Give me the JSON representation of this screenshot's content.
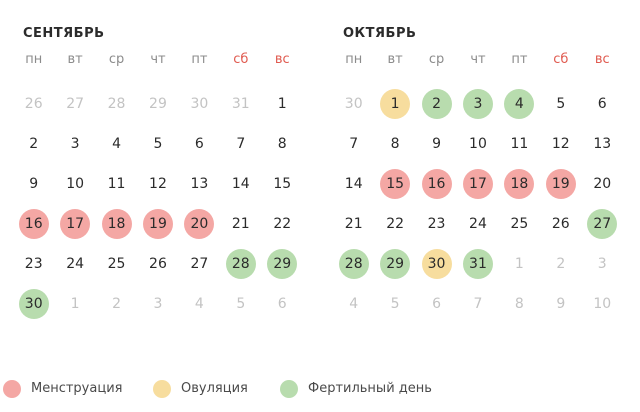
{
  "legend": {
    "items": [
      {
        "label": "Менструация",
        "color": "#f4a7a4",
        "type": "menstruation"
      },
      {
        "label": "Овуляция",
        "color": "#f7dd9e",
        "type": "ovulation"
      },
      {
        "label": "Фертильный день",
        "color": "#b8dcae",
        "type": "fertile"
      }
    ]
  },
  "months": [
    {
      "title": "СЕНТЯБРЬ",
      "weekdays": [
        {
          "label": "пн",
          "weekend": false
        },
        {
          "label": "вт",
          "weekend": false
        },
        {
          "label": "ср",
          "weekend": false
        },
        {
          "label": "чт",
          "weekend": false
        },
        {
          "label": "пт",
          "weekend": false
        },
        {
          "label": "сб",
          "weekend": true
        },
        {
          "label": "вс",
          "weekend": true
        }
      ],
      "weeks": [
        [
          {
            "d": "26",
            "m": true
          },
          {
            "d": "27",
            "m": true
          },
          {
            "d": "28",
            "m": true
          },
          {
            "d": "29",
            "m": true
          },
          {
            "d": "30",
            "m": true
          },
          {
            "d": "31",
            "m": true
          },
          {
            "d": "1"
          }
        ],
        [
          {
            "d": "2"
          },
          {
            "d": "3"
          },
          {
            "d": "4"
          },
          {
            "d": "5"
          },
          {
            "d": "6"
          },
          {
            "d": "7"
          },
          {
            "d": "8"
          }
        ],
        [
          {
            "d": "9"
          },
          {
            "d": "10"
          },
          {
            "d": "11"
          },
          {
            "d": "12"
          },
          {
            "d": "13"
          },
          {
            "d": "14"
          },
          {
            "d": "15"
          }
        ],
        [
          {
            "d": "16",
            "s": "menstruation"
          },
          {
            "d": "17",
            "s": "menstruation"
          },
          {
            "d": "18",
            "s": "menstruation"
          },
          {
            "d": "19",
            "s": "menstruation"
          },
          {
            "d": "20",
            "s": "menstruation"
          },
          {
            "d": "21"
          },
          {
            "d": "22"
          }
        ],
        [
          {
            "d": "23"
          },
          {
            "d": "24"
          },
          {
            "d": "25"
          },
          {
            "d": "26"
          },
          {
            "d": "27"
          },
          {
            "d": "28",
            "s": "fertile"
          },
          {
            "d": "29",
            "s": "fertile"
          }
        ],
        [
          {
            "d": "30",
            "s": "fertile"
          },
          {
            "d": "1",
            "m": true
          },
          {
            "d": "2",
            "m": true
          },
          {
            "d": "3",
            "m": true
          },
          {
            "d": "4",
            "m": true
          },
          {
            "d": "5",
            "m": true
          },
          {
            "d": "6",
            "m": true
          }
        ]
      ]
    },
    {
      "title": "ОКТЯБРЬ",
      "weekdays": [
        {
          "label": "пн",
          "weekend": false
        },
        {
          "label": "вт",
          "weekend": false
        },
        {
          "label": "ср",
          "weekend": false
        },
        {
          "label": "чт",
          "weekend": false
        },
        {
          "label": "пт",
          "weekend": false
        },
        {
          "label": "сб",
          "weekend": true
        },
        {
          "label": "вс",
          "weekend": true
        }
      ],
      "weeks": [
        [
          {
            "d": "30",
            "m": true
          },
          {
            "d": "1",
            "s": "ovulation"
          },
          {
            "d": "2",
            "s": "fertile"
          },
          {
            "d": "3",
            "s": "fertile"
          },
          {
            "d": "4",
            "s": "fertile"
          },
          {
            "d": "5"
          },
          {
            "d": "6"
          }
        ],
        [
          {
            "d": "7"
          },
          {
            "d": "8"
          },
          {
            "d": "9"
          },
          {
            "d": "10"
          },
          {
            "d": "11"
          },
          {
            "d": "12"
          },
          {
            "d": "13"
          }
        ],
        [
          {
            "d": "14"
          },
          {
            "d": "15",
            "s": "menstruation"
          },
          {
            "d": "16",
            "s": "menstruation"
          },
          {
            "d": "17",
            "s": "menstruation"
          },
          {
            "d": "18",
            "s": "menstruation"
          },
          {
            "d": "19",
            "s": "menstruation"
          },
          {
            "d": "20"
          }
        ],
        [
          {
            "d": "21"
          },
          {
            "d": "22"
          },
          {
            "d": "23"
          },
          {
            "d": "24"
          },
          {
            "d": "25"
          },
          {
            "d": "26"
          },
          {
            "d": "27",
            "s": "fertile"
          }
        ],
        [
          {
            "d": "28",
            "s": "fertile"
          },
          {
            "d": "29",
            "s": "fertile"
          },
          {
            "d": "30",
            "s": "ovulation"
          },
          {
            "d": "31",
            "s": "fertile"
          },
          {
            "d": "1",
            "m": true
          },
          {
            "d": "2",
            "m": true
          },
          {
            "d": "3",
            "m": true
          }
        ],
        [
          {
            "d": "4",
            "m": true
          },
          {
            "d": "5",
            "m": true
          },
          {
            "d": "6",
            "m": true
          },
          {
            "d": "7",
            "m": true
          },
          {
            "d": "8",
            "m": true
          },
          {
            "d": "9",
            "m": true
          },
          {
            "d": "10",
            "m": true
          }
        ]
      ]
    }
  ]
}
